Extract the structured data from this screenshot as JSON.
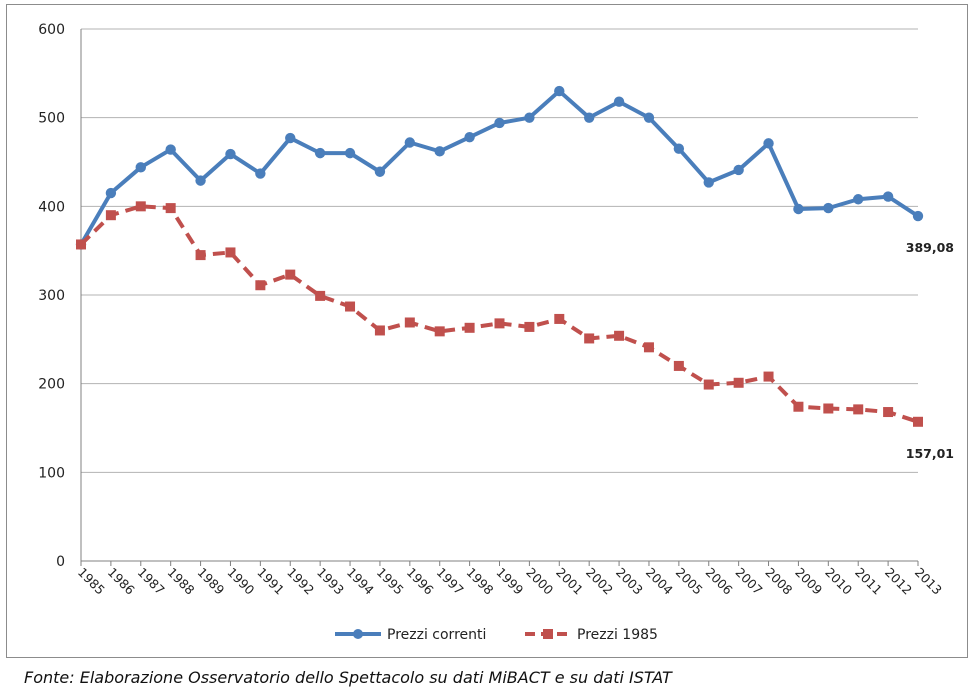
{
  "source_note": "Fonte: Elaborazione Osservatorio dello Spettacolo su dati MiBACT e su dati ISTAT",
  "colors": {
    "series_1": "#4a7ebb",
    "series_2": "#c0504d",
    "grid": "#b3b3b3",
    "axis": "#808080"
  },
  "chart_data": {
    "type": "line",
    "title": "",
    "xlabel": "",
    "ylabel": "",
    "ylim": [
      0,
      600
    ],
    "yticks": [
      "0",
      "100",
      "200",
      "300",
      "400",
      "500",
      "600"
    ],
    "grid": "horizontal",
    "legend_position": "bottom",
    "x": [
      "1985",
      "1986",
      "1987",
      "1988",
      "1989",
      "1990",
      "1991",
      "1992",
      "1993",
      "1994",
      "1995",
      "1996",
      "1997",
      "1998",
      "1999",
      "2000",
      "2001",
      "2002",
      "2003",
      "2004",
      "2005",
      "2006",
      "2007",
      "2008",
      "2009",
      "2010",
      "2011",
      "2012",
      "2013"
    ],
    "series": [
      {
        "name": "Prezzi correnti",
        "style": "solid, circle markers",
        "values": [
          357,
          415,
          444,
          464,
          429,
          459,
          437,
          477,
          460,
          460,
          439,
          472,
          462,
          478,
          494,
          500,
          530,
          500,
          518,
          500,
          465,
          427,
          441,
          471,
          397,
          398,
          408,
          411,
          389.08
        ],
        "end_label": "389,08"
      },
      {
        "name": "Prezzi 1985",
        "style": "dashed, square markers",
        "values": [
          357,
          390,
          400,
          398,
          345,
          348,
          311,
          323,
          299,
          287,
          260,
          269,
          259,
          263,
          268,
          264,
          273,
          251,
          254,
          241,
          220,
          199,
          201,
          208,
          174,
          172,
          171,
          168,
          157.01
        ],
        "end_label": "157,01"
      }
    ]
  }
}
